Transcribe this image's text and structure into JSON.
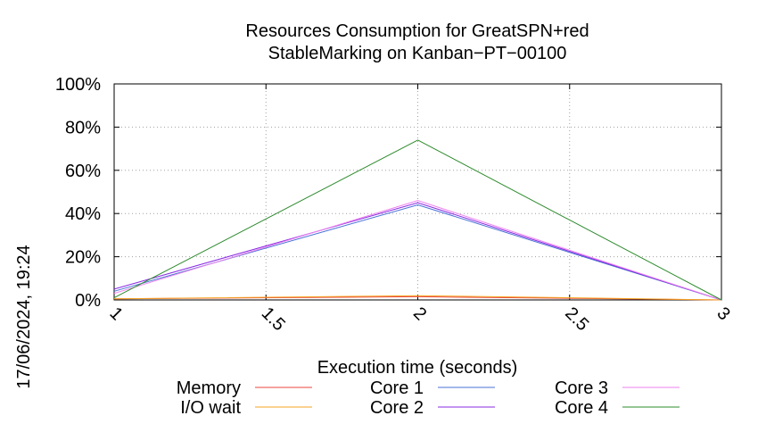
{
  "chart_data": {
    "type": "line",
    "title": [
      "Resources Consumption for GreatSPN+red",
      "StableMarking on Kanban−PT−00100"
    ],
    "xlabel": "Execution time (seconds)",
    "ylabel": "",
    "xlim": [
      1,
      3
    ],
    "ylim": [
      0,
      100
    ],
    "x_ticks": [
      {
        "value": 1,
        "label": "1"
      },
      {
        "value": 1.5,
        "label": "1.5"
      },
      {
        "value": 2,
        "label": "2"
      },
      {
        "value": 2.5,
        "label": "2.5"
      },
      {
        "value": 3,
        "label": "3"
      }
    ],
    "y_ticks": [
      {
        "value": 0,
        "label": "0%"
      },
      {
        "value": 20,
        "label": "20%"
      },
      {
        "value": 40,
        "label": "40%"
      },
      {
        "value": 60,
        "label": "60%"
      },
      {
        "value": 80,
        "label": "80%"
      },
      {
        "value": 100,
        "label": "100%"
      }
    ],
    "grid": true,
    "x": [
      1,
      2,
      3
    ],
    "series": [
      {
        "name": "Memory",
        "color": "#e8453c",
        "values": [
          0.5,
          1.5,
          0
        ]
      },
      {
        "name": "I/O wait",
        "color": "#f5a623",
        "values": [
          0.5,
          2,
          0
        ]
      },
      {
        "name": "Core 1",
        "color": "#4a72d6",
        "values": [
          4,
          44,
          0
        ]
      },
      {
        "name": "Core 2",
        "color": "#8a2be2",
        "values": [
          5,
          45,
          0
        ]
      },
      {
        "name": "Core 3",
        "color": "#ee82ee",
        "values": [
          3,
          46,
          0
        ]
      },
      {
        "name": "Core 4",
        "color": "#2e8b2e",
        "values": [
          1,
          74,
          0
        ]
      }
    ],
    "legend_position": "bottom"
  },
  "side_note": "17/06/2024, 19:24"
}
